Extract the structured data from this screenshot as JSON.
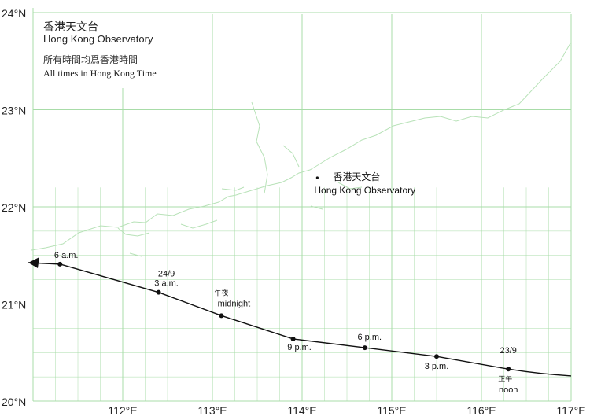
{
  "header": {
    "title_zh": "香港天文台",
    "title_en": "Hong Kong Observatory",
    "note_zh": "所有時間均爲香港時間",
    "note_en": "All times in Hong Kong Time"
  },
  "axes": {
    "lat": [
      {
        "value": 24,
        "label": "24°N"
      },
      {
        "value": 23,
        "label": "23°N"
      },
      {
        "value": 22,
        "label": "22°N"
      },
      {
        "value": 21,
        "label": "21°N"
      },
      {
        "value": 20,
        "label": "20°N"
      }
    ],
    "lon": [
      {
        "value": 112,
        "label": "112°E"
      },
      {
        "value": 113,
        "label": "113°E"
      },
      {
        "value": 114,
        "label": "114°E"
      },
      {
        "value": 115,
        "label": "115°E"
      },
      {
        "value": 116,
        "label": "116°E"
      },
      {
        "value": 117,
        "label": "117°E"
      }
    ]
  },
  "observatory": {
    "lon": 114.17,
    "lat": 22.3,
    "name_zh": "香港天文台",
    "name_en": "Hong Kong Observatory"
  },
  "track_points": [
    {
      "lon": 116.3,
      "lat": 20.33,
      "time": "noon",
      "time_zh": "正午",
      "date": "23/9"
    },
    {
      "lon": 115.5,
      "lat": 20.46,
      "time": "3 p.m."
    },
    {
      "lon": 114.7,
      "lat": 20.55,
      "time": "6 p.m."
    },
    {
      "lon": 113.9,
      "lat": 20.64,
      "time": "9 p.m."
    },
    {
      "lon": 113.1,
      "lat": 20.88,
      "time": "midnight",
      "time_zh": "午夜"
    },
    {
      "lon": 112.4,
      "lat": 21.12,
      "time": "3 a.m.",
      "date": "24/9"
    },
    {
      "lon": 111.3,
      "lat": 21.41,
      "time": "6 a.m."
    }
  ],
  "colors": {
    "grid": "#a8dca8",
    "coast": "#b8e2b8",
    "track": "#111111",
    "text": "#222222"
  }
}
